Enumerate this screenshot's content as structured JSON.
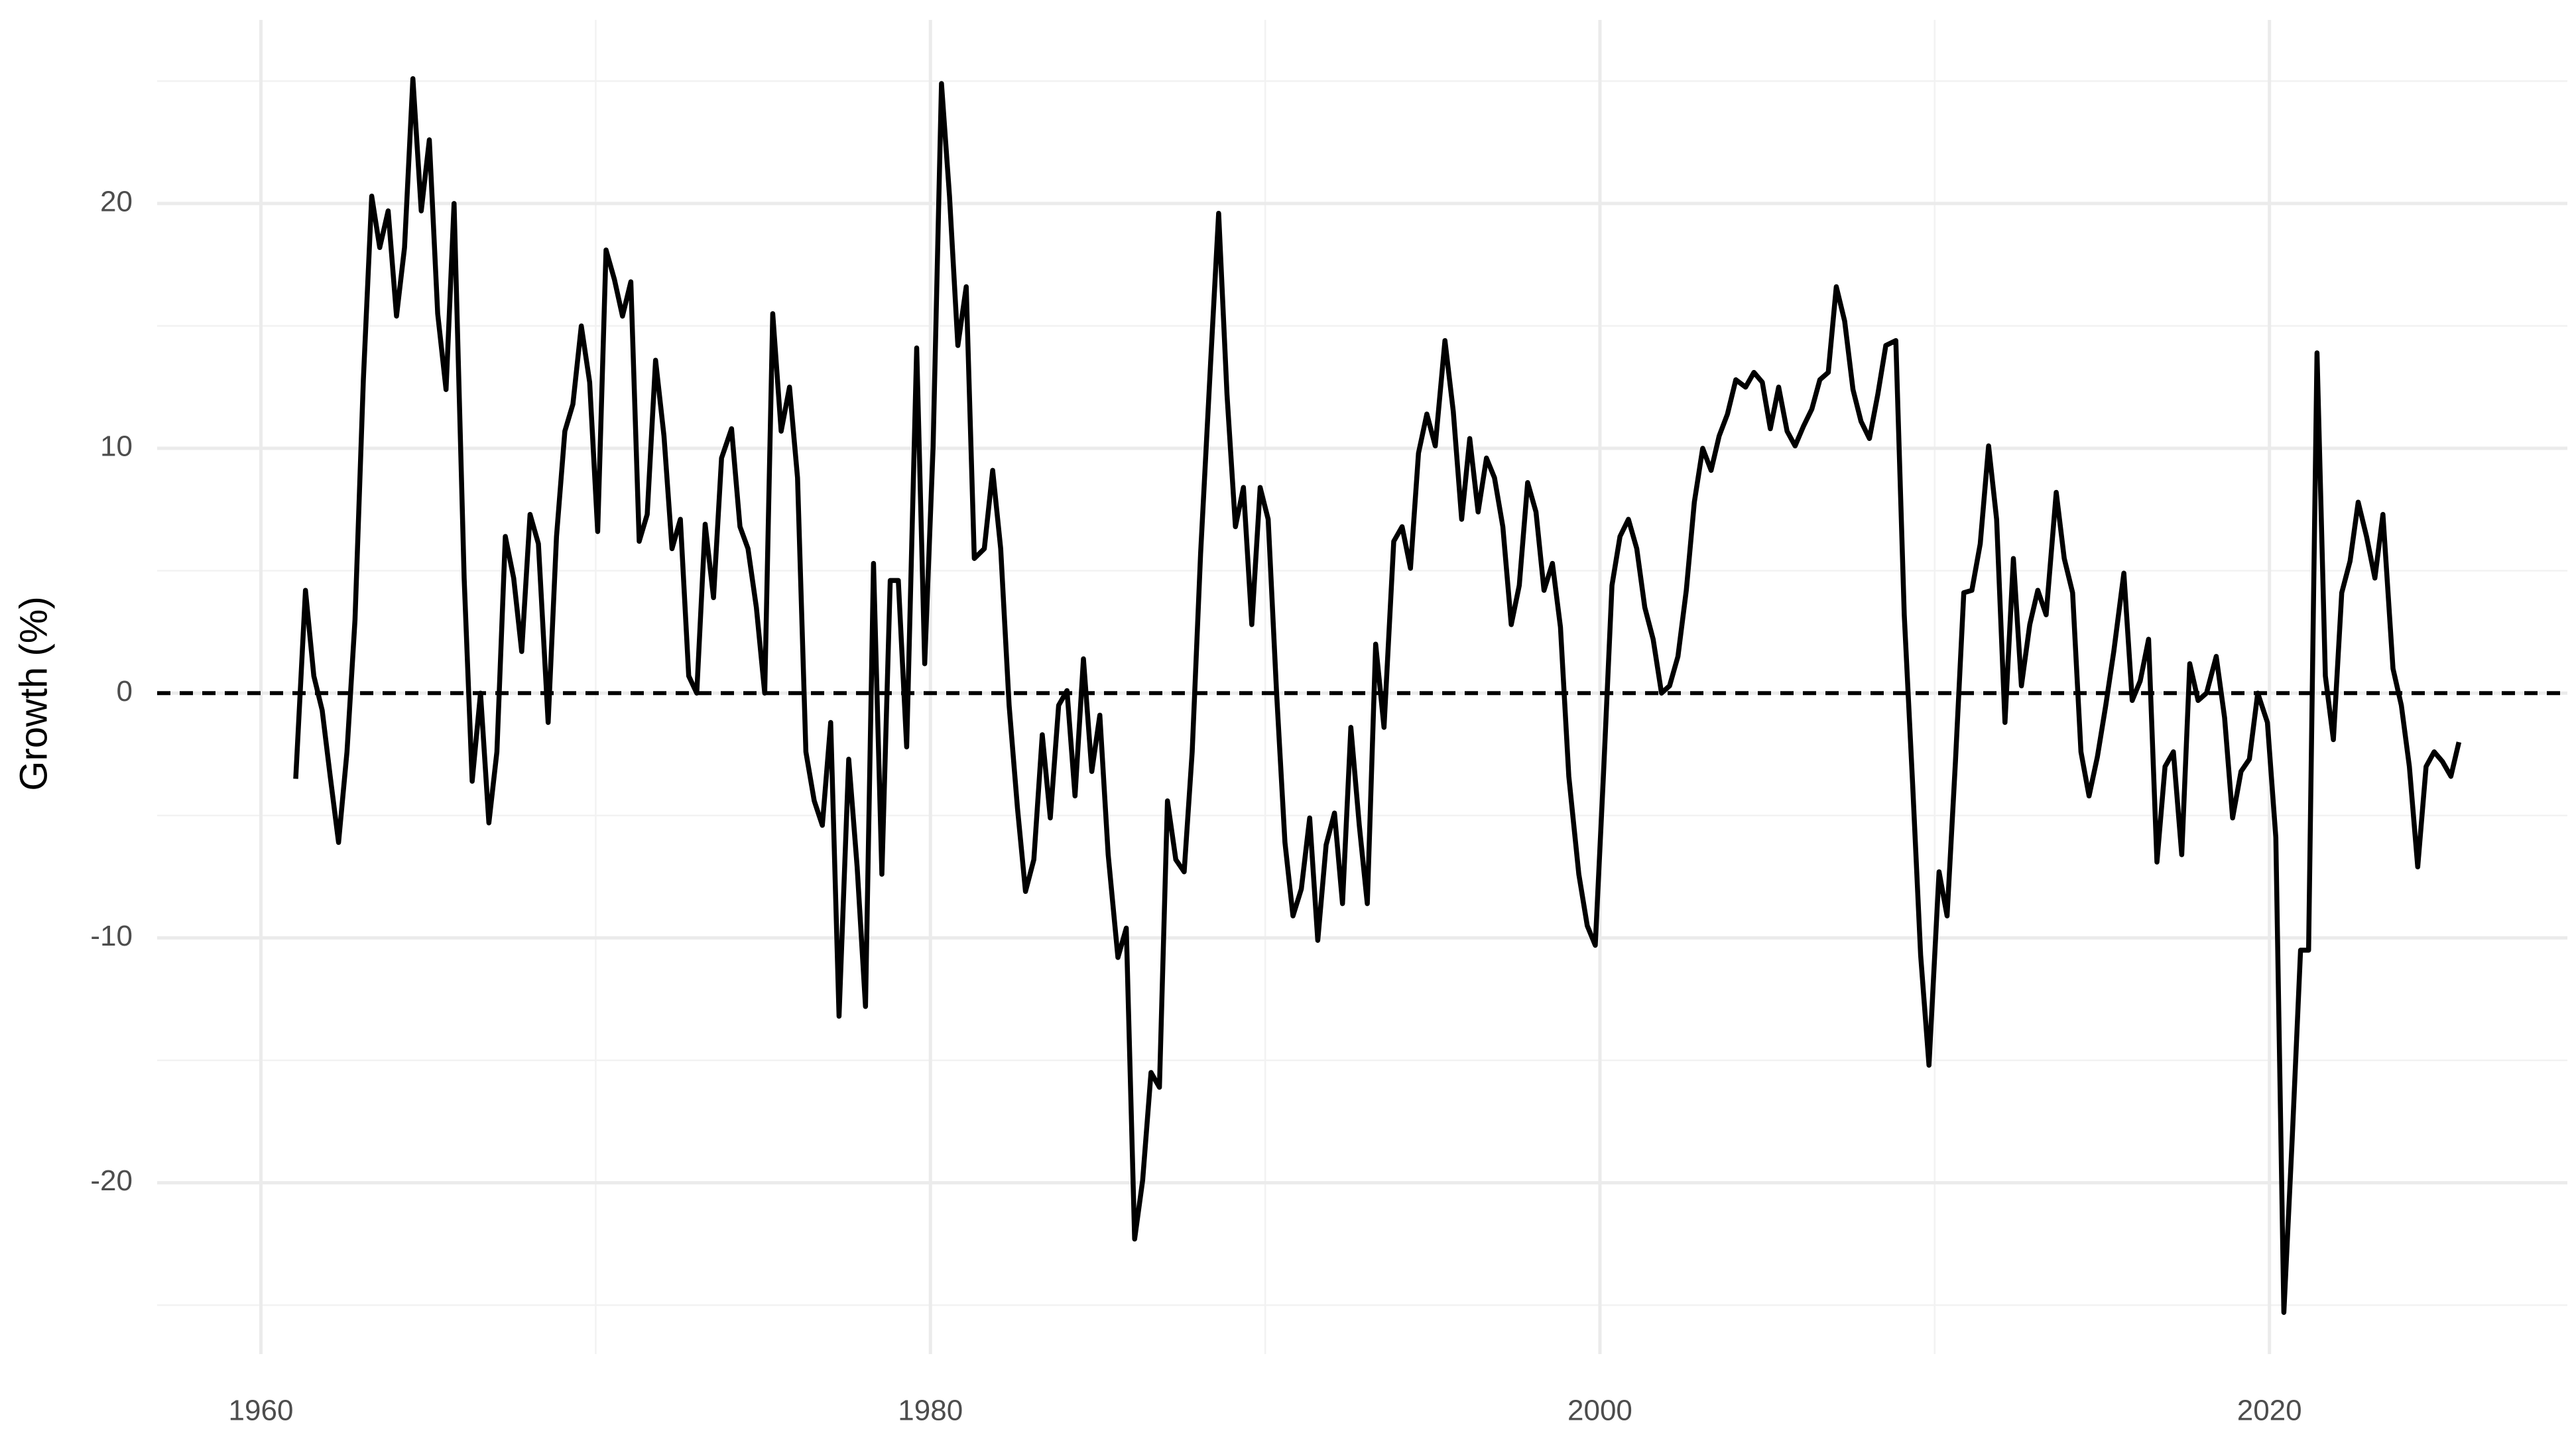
{
  "chart_data": {
    "type": "line",
    "y_label": "Growth (%)",
    "color": "#000000",
    "grid": true,
    "hline": 0,
    "xlim": [
      1956.9,
      2028.9
    ],
    "ylim": [
      -27,
      27.5
    ],
    "xticks": [
      1960,
      1980,
      2000,
      2020
    ],
    "yticks": [
      -20,
      -10,
      0,
      10,
      20
    ],
    "minor_xticks": [
      1970,
      1990,
      2010
    ],
    "minor_yticks": [
      -25,
      -15,
      -5,
      5,
      15,
      25
    ],
    "x": [
      1961.04,
      1961.33,
      1961.58,
      1961.83,
      1962.07,
      1962.32,
      1962.57,
      1962.81,
      1963.06,
      1963.31,
      1963.55,
      1963.8,
      1964.05,
      1964.29,
      1964.54,
      1964.79,
      1965.03,
      1965.28,
      1965.53,
      1965.77,
      1966.07,
      1966.31,
      1966.56,
      1966.81,
      1967.05,
      1967.3,
      1967.55,
      1967.79,
      1968.04,
      1968.29,
      1968.58,
      1968.83,
      1969.08,
      1969.32,
      1969.57,
      1969.82,
      1970.06,
      1970.31,
      1970.56,
      1970.8,
      1971.05,
      1971.3,
      1971.54,
      1971.79,
      1972.04,
      1972.28,
      1972.53,
      1972.78,
      1973.02,
      1973.27,
      1973.52,
      1973.76,
      1974.06,
      1974.31,
      1974.55,
      1974.8,
      1975.05,
      1975.29,
      1975.54,
      1975.79,
      1976.03,
      1976.28,
      1976.53,
      1976.77,
      1977.02,
      1977.27,
      1977.56,
      1977.81,
      1978.06,
      1978.3,
      1978.55,
      1978.8,
      1979.04,
      1979.29,
      1979.59,
      1979.83,
      1980.08,
      1980.33,
      1980.57,
      1980.82,
      1981.07,
      1981.31,
      1981.61,
      1981.86,
      1982.1,
      1982.35,
      1982.6,
      1982.84,
      1983.09,
      1983.34,
      1983.58,
      1983.83,
      1984.08,
      1984.32,
      1984.57,
      1984.82,
      1985.06,
      1985.31,
      1985.6,
      1985.85,
      1986.1,
      1986.34,
      1986.59,
      1986.84,
      1987.08,
      1987.33,
      1987.58,
      1987.82,
      1988.07,
      1988.37,
      1988.61,
      1988.86,
      1989.11,
      1989.35,
      1989.6,
      1989.85,
      1990.09,
      1990.34,
      1990.59,
      1990.83,
      1991.08,
      1991.33,
      1991.57,
      1991.82,
      1992.07,
      1992.31,
      1992.56,
      1992.81,
      1993.05,
      1993.3,
      1993.55,
      1993.84,
      1994.09,
      1994.34,
      1994.58,
      1994.83,
      1995.08,
      1995.37,
      1995.62,
      1995.87,
      1996.11,
      1996.36,
      1996.61,
      1996.85,
      1997.1,
      1997.35,
      1997.59,
      1997.84,
      1998.09,
      1998.33,
      1998.58,
      1998.82,
      1999.07,
      1999.37,
      1999.62,
      1999.86,
      2000.11,
      2000.36,
      2000.6,
      2000.85,
      2001.1,
      2001.34,
      2001.59,
      2001.84,
      2002.08,
      2002.33,
      2002.58,
      2002.82,
      2003.07,
      2003.32,
      2003.56,
      2003.81,
      2004.06,
      2004.35,
      2004.6,
      2004.85,
      2005.09,
      2005.34,
      2005.59,
      2005.83,
      2006.08,
      2006.33,
      2006.57,
      2006.82,
      2007.06,
      2007.31,
      2007.56,
      2007.8,
      2008.05,
      2008.3,
      2008.54,
      2008.84,
      2009.09,
      2009.34,
      2009.58,
      2009.83,
      2010.13,
      2010.37,
      2010.62,
      2010.87,
      2011.11,
      2011.36,
      2011.61,
      2011.85,
      2012.1,
      2012.35,
      2012.59,
      2012.84,
      2013.08,
      2013.33,
      2013.63,
      2013.87,
      2014.12,
      2014.37,
      2014.61,
      2014.86,
      2015.11,
      2015.35,
      2015.65,
      2015.9,
      2016.14,
      2016.39,
      2016.64,
      2016.88,
      2017.13,
      2017.38,
      2017.62,
      2017.87,
      2018.12,
      2018.41,
      2018.66,
      2018.9,
      2019.15,
      2019.4,
      2019.65,
      2019.94,
      2020.19,
      2020.43,
      2020.68,
      2020.93,
      2021.17,
      2021.42,
      2021.67,
      2021.91,
      2022.16,
      2022.41,
      2022.65,
      2022.9,
      2023.15,
      2023.39,
      2023.69,
      2023.94,
      2024.18,
      2024.43,
      2024.68,
      2024.92,
      2025.17,
      2025.42,
      2025.66
    ],
    "values": [
      -3.5,
      4.2,
      0.7,
      -0.7,
      -3.4,
      -6.1,
      -2.4,
      3.0,
      12.8,
      20.3,
      18.2,
      19.7,
      15.4,
      18.2,
      25.1,
      19.7,
      22.6,
      15.5,
      12.4,
      20.0,
      4.7,
      -3.6,
      0,
      -5.3,
      -2.4,
      6.4,
      4.7,
      1.7,
      7.3,
      6.1,
      -1.2,
      6.4,
      10.7,
      11.8,
      15.0,
      12.7,
      6.6,
      18.1,
      16.9,
      15.4,
      16.8,
      6.2,
      7.3,
      13.6,
      10.5,
      5.9,
      7.1,
      0.7,
      0,
      6.9,
      3.9,
      9.6,
      10.8,
      6.8,
      5.9,
      3.5,
      0,
      15.5,
      10.7,
      12.5,
      8.8,
      -2.4,
      -4.4,
      -5.4,
      -1.2,
      -13.2,
      -2.7,
      -7.1,
      -12.8,
      5.3,
      -7.4,
      4.6,
      4.6,
      -2.2,
      14.1,
      1.2,
      10.1,
      24.9,
      20.3,
      14.2,
      16.6,
      5.5,
      5.9,
      9.1,
      5.9,
      -0.5,
      -4.7,
      -8.1,
      -6.8,
      -1.7,
      -5.1,
      -0.5,
      0.1,
      -4.2,
      1.4,
      -3.2,
      -0.9,
      -6.6,
      -10.8,
      -9.6,
      -22.3,
      -19.9,
      -15.5,
      -16.1,
      -4.4,
      -6.8,
      -7.3,
      -2.4,
      5.7,
      13.5,
      19.6,
      12.2,
      6.8,
      8.4,
      2.8,
      8.4,
      7.1,
      0,
      -6.1,
      -9.1,
      -8.0,
      -5.1,
      -10.1,
      -6.2,
      -4.9,
      -8.6,
      -1.4,
      -5.4,
      -8.6,
      2.0,
      -1.4,
      6.2,
      6.8,
      5.1,
      9.8,
      11.4,
      10.1,
      14.4,
      11.5,
      7.1,
      10.4,
      7.4,
      9.6,
      8.8,
      6.8,
      2.8,
      4.4,
      8.6,
      7.4,
      4.2,
      5.3,
      2.7,
      -3.4,
      -7.4,
      -9.5,
      -10.3,
      -3.2,
      4.4,
      6.4,
      7.1,
      5.9,
      3.5,
      2.2,
      0,
      0.3,
      1.5,
      4.2,
      7.8,
      10.0,
      9.1,
      10.5,
      11.4,
      12.8,
      12.5,
      13.1,
      12.7,
      10.8,
      12.5,
      10.7,
      10.1,
      10.9,
      11.6,
      12.8,
      13.1,
      16.6,
      15.2,
      12.4,
      11.1,
      10.4,
      12.2,
      14.2,
      14.4,
      3.2,
      -3.7,
      -10.7,
      -15.2,
      -7.3,
      -9.1,
      -2.8,
      4.1,
      4.2,
      6.1,
      10.1,
      7.1,
      -1.2,
      5.5,
      0.3,
      2.8,
      4.2,
      3.2,
      8.2,
      5.5,
      4.1,
      -2.4,
      -4.2,
      -2.6,
      -0.5,
      1.7,
      4.9,
      -0.3,
      0.5,
      2.2,
      -6.9,
      -3.0,
      -2.4,
      -6.6,
      1.2,
      -0.3,
      0,
      1.5,
      -1.0,
      -5.1,
      -3.2,
      -2.7,
      0,
      -1.2,
      -5.9,
      -25.3,
      -18.2,
      -10.5,
      -10.5,
      13.9,
      0.7,
      -1.9,
      4.1,
      5.4,
      7.8,
      6.4,
      4.7,
      7.3,
      1.0,
      -0.5,
      -3.0,
      -7.1,
      -3.0,
      -2.4,
      -2.8,
      -3.4,
      -2.0
    ]
  }
}
